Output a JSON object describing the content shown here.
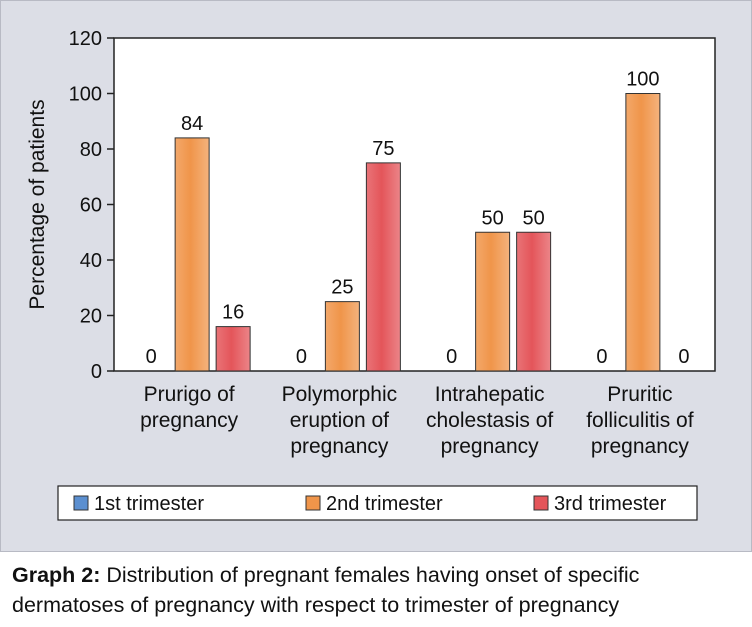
{
  "chart_data": {
    "type": "bar",
    "ylabel": "Percentage of patients",
    "ylim": [
      0,
      120
    ],
    "yticks": [
      0,
      20,
      40,
      60,
      80,
      100,
      120
    ],
    "categories": [
      [
        "Prurigo of",
        "pregnancy"
      ],
      [
        "Polymorphic",
        "eruption of",
        "pregnancy"
      ],
      [
        "Intrahepatic",
        "cholestasis of",
        "pregnancy"
      ],
      [
        "Pruritic",
        "folliculitis of",
        "pregnancy"
      ]
    ],
    "series": [
      {
        "name": "1st trimester",
        "color": "#5b8fd0",
        "values": [
          0,
          0,
          0,
          0
        ]
      },
      {
        "name": "2nd trimester",
        "color": "#f0954a",
        "values": [
          84,
          25,
          50,
          100
        ]
      },
      {
        "name": "3rd trimester",
        "color": "#e4555a",
        "values": [
          16,
          75,
          50,
          0
        ]
      }
    ],
    "grid": false,
    "legend_position": "bottom"
  },
  "caption": {
    "label": "Graph 2:",
    "text": " Distribution of pregnant females having onset of specific dermatoses of pregnancy with respect to trimester of pregnancy"
  }
}
